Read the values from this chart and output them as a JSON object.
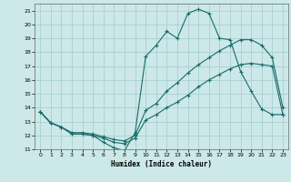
{
  "xlabel": "Humidex (Indice chaleur)",
  "xlim": [
    -0.5,
    23.5
  ],
  "ylim": [
    11,
    21.5
  ],
  "yticks": [
    11,
    12,
    13,
    14,
    15,
    16,
    17,
    18,
    19,
    20,
    21
  ],
  "xticks": [
    0,
    1,
    2,
    3,
    4,
    5,
    6,
    7,
    8,
    9,
    10,
    11,
    12,
    13,
    14,
    15,
    16,
    17,
    18,
    19,
    20,
    21,
    22,
    23
  ],
  "background_color": "#cce8e8",
  "grid_color": "#aad0d0",
  "line_color": "#1a6b6b",
  "line1_x": [
    0,
    1,
    2,
    3,
    4,
    5,
    6,
    7,
    8,
    9,
    10,
    11,
    12,
    13,
    14,
    15,
    16,
    17,
    18,
    19,
    20,
    21,
    22,
    23
  ],
  "line1_y": [
    13.7,
    12.9,
    12.6,
    12.1,
    12.1,
    12.0,
    11.5,
    11.1,
    10.9,
    12.2,
    17.7,
    18.5,
    19.5,
    19.0,
    20.8,
    21.1,
    20.8,
    19.0,
    18.9,
    16.6,
    15.2,
    13.9,
    13.5,
    13.5
  ],
  "line2_x": [
    0,
    1,
    2,
    3,
    4,
    5,
    6,
    7,
    8,
    9,
    10,
    11,
    12,
    13,
    14,
    15,
    16,
    17,
    18,
    19,
    20,
    21,
    22,
    23
  ],
  "line2_y": [
    13.7,
    12.9,
    12.6,
    12.2,
    12.2,
    12.1,
    11.9,
    11.7,
    11.6,
    12.0,
    13.8,
    14.3,
    15.2,
    15.8,
    16.5,
    17.1,
    17.6,
    18.1,
    18.5,
    18.9,
    18.9,
    18.5,
    17.6,
    14.0
  ],
  "line3_x": [
    0,
    1,
    2,
    3,
    4,
    5,
    6,
    7,
    8,
    9,
    10,
    11,
    12,
    13,
    14,
    15,
    16,
    17,
    18,
    19,
    20,
    21,
    22,
    23
  ],
  "line3_y": [
    13.7,
    12.9,
    12.6,
    12.1,
    12.1,
    12.0,
    11.8,
    11.5,
    11.4,
    11.8,
    13.1,
    13.5,
    14.0,
    14.4,
    14.9,
    15.5,
    16.0,
    16.4,
    16.8,
    17.1,
    17.2,
    17.1,
    17.0,
    13.5
  ]
}
